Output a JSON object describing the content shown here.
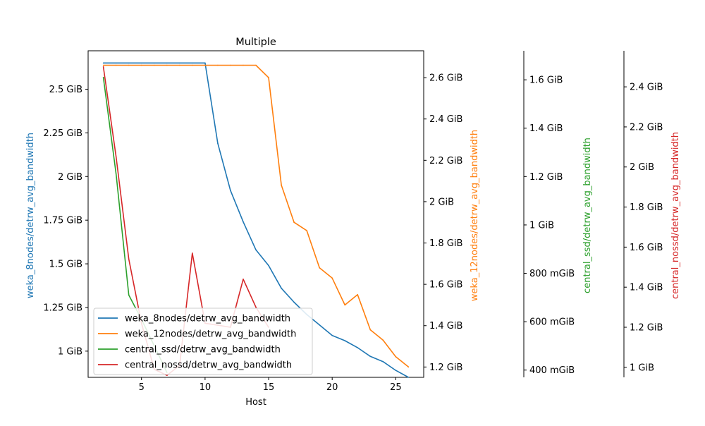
{
  "chart_data": {
    "type": "line",
    "title": "Multiple",
    "xlabel": "Host",
    "xlim": [
      0.8,
      27.2
    ],
    "x_ticks": [
      5,
      10,
      15,
      20,
      25
    ],
    "grid": false,
    "legend_position": "lower-left",
    "axes": [
      {
        "id": "a1",
        "side": "left",
        "label": "weka_8nodes/detrw_avg_bandwidth",
        "color": "#1f77b4",
        "ylim": [
          0.85,
          2.72
        ],
        "ticks": [
          {
            "value": 1.0,
            "label": "1 GiB"
          },
          {
            "value": 1.25,
            "label": "1.25 GiB"
          },
          {
            "value": 1.5,
            "label": "1.5 GiB"
          },
          {
            "value": 1.75,
            "label": "1.75 GiB"
          },
          {
            "value": 2.0,
            "label": "2 GiB"
          },
          {
            "value": 2.25,
            "label": "2.25 GiB"
          },
          {
            "value": 2.5,
            "label": "2.5 GiB"
          }
        ]
      },
      {
        "id": "a2",
        "side": "right",
        "label": "weka_12nodes/detrw_avg_bandwidth",
        "color": "#ff7f0e",
        "ylim": [
          1.15,
          2.73
        ],
        "ticks": [
          {
            "value": 1.2,
            "label": "1.2 GiB"
          },
          {
            "value": 1.4,
            "label": "1.4 GiB"
          },
          {
            "value": 1.6,
            "label": "1.6 GiB"
          },
          {
            "value": 1.8,
            "label": "1.8 GiB"
          },
          {
            "value": 2.0,
            "label": "2 GiB"
          },
          {
            "value": 2.2,
            "label": "2.2 GiB"
          },
          {
            "value": 2.4,
            "label": "2.4 GiB"
          },
          {
            "value": 2.6,
            "label": "2.6 GiB"
          }
        ]
      },
      {
        "id": "a3",
        "side": "right",
        "label": "central_ssd/detrw_avg_bandwidth",
        "color": "#2ca02c",
        "ylim": [
          0.37,
          1.72
        ],
        "ticks": [
          {
            "value": 0.4,
            "label": "400 mGiB"
          },
          {
            "value": 0.6,
            "label": "600 mGiB"
          },
          {
            "value": 0.8,
            "label": "800 mGiB"
          },
          {
            "value": 1.0,
            "label": "1 GiB"
          },
          {
            "value": 1.2,
            "label": "1.2 GiB"
          },
          {
            "value": 1.4,
            "label": "1.4 GiB"
          },
          {
            "value": 1.6,
            "label": "1.6 GiB"
          }
        ]
      },
      {
        "id": "a4",
        "side": "right",
        "label": "central_nossd/detrw_avg_bandwidth",
        "color": "#d62728",
        "ylim": [
          0.95,
          2.58
        ],
        "ticks": [
          {
            "value": 1.0,
            "label": "1 GiB"
          },
          {
            "value": 1.2,
            "label": "1.2 GiB"
          },
          {
            "value": 1.4,
            "label": "1.4 GiB"
          },
          {
            "value": 1.6,
            "label": "1.6 GiB"
          },
          {
            "value": 1.8,
            "label": "1.8 GiB"
          },
          {
            "value": 2.0,
            "label": "2 GiB"
          },
          {
            "value": 2.2,
            "label": "2.2 GiB"
          },
          {
            "value": 2.4,
            "label": "2.4 GiB"
          }
        ]
      }
    ],
    "series": [
      {
        "name": "weka_8nodes/detrw_avg_bandwidth",
        "axis": "a1",
        "color": "#1f77b4",
        "x": [
          2,
          3,
          4,
          5,
          6,
          7,
          8,
          9,
          10,
          11,
          12,
          13,
          14,
          15,
          16,
          17,
          18,
          19,
          20,
          21,
          22,
          23,
          24,
          25,
          26
        ],
        "y": [
          2.65,
          2.65,
          2.65,
          2.65,
          2.65,
          2.65,
          2.65,
          2.65,
          2.65,
          2.19,
          1.92,
          1.74,
          1.58,
          1.49,
          1.36,
          1.28,
          1.21,
          1.15,
          1.09,
          1.06,
          1.02,
          0.97,
          0.94,
          0.89,
          0.85
        ]
      },
      {
        "name": "weka_12nodes/detrw_avg_bandwidth",
        "axis": "a2",
        "color": "#ff7f0e",
        "x": [
          2,
          3,
          4,
          5,
          6,
          7,
          8,
          9,
          10,
          11,
          12,
          13,
          14,
          15,
          16,
          17,
          18,
          19,
          20,
          21,
          22,
          23,
          24,
          25,
          26
        ],
        "y": [
          2.66,
          2.66,
          2.66,
          2.66,
          2.66,
          2.66,
          2.66,
          2.66,
          2.66,
          2.66,
          2.66,
          2.66,
          2.66,
          2.6,
          2.08,
          1.9,
          1.86,
          1.68,
          1.63,
          1.5,
          1.55,
          1.38,
          1.33,
          1.25,
          1.2
        ]
      },
      {
        "name": "central_ssd/detrw_avg_bandwidth",
        "axis": "a3",
        "color": "#2ca02c",
        "x": [
          2,
          3,
          4,
          5,
          6,
          7
        ],
        "y": [
          1.61,
          1.21,
          0.71,
          0.61,
          0.5,
          0.39
        ]
      },
      {
        "name": "central_nossd/detrw_avg_bandwidth",
        "axis": "a4",
        "color": "#d62728",
        "x": [
          2,
          3,
          4,
          5,
          6,
          7,
          8,
          9,
          10,
          11,
          12,
          13,
          14,
          15
        ],
        "y": [
          2.5,
          2.05,
          1.54,
          1.22,
          0.99,
          0.96,
          1.01,
          1.57,
          1.22,
          1.21,
          1.2,
          1.44,
          1.3,
          1.2
        ]
      }
    ]
  }
}
